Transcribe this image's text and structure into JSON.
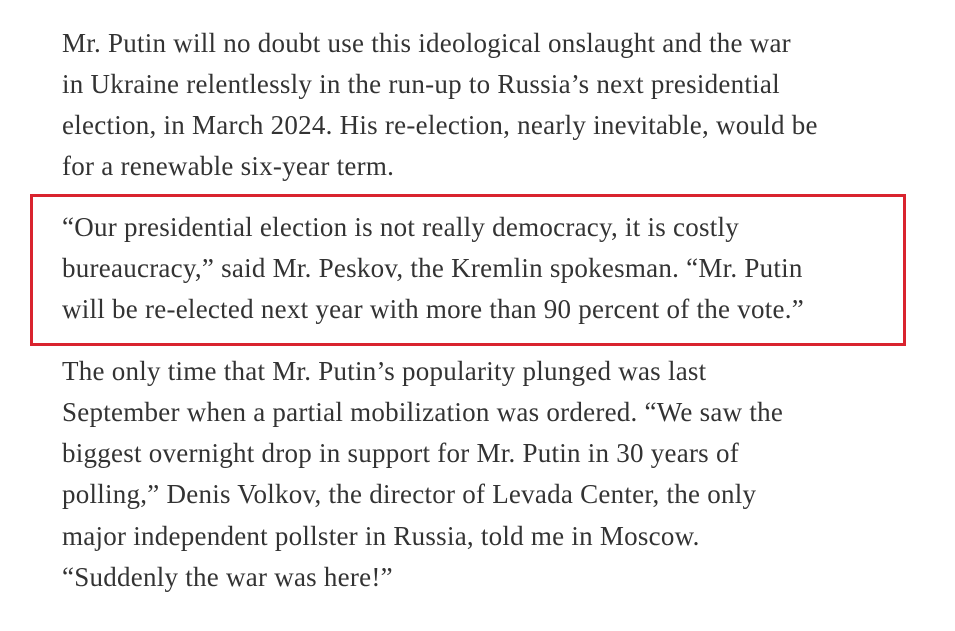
{
  "paragraphs": [
    {
      "lines": [
        "Mr. Putin will no doubt use this ideological onslaught and the war",
        "in Ukraine relentlessly in the run-up to Russia’s next presidential",
        "election, in March 2024. His re-election, nearly inevitable, would be",
        "for a renewable six-year term."
      ]
    },
    {
      "lines": [
        "“Our presidential election is not really democracy, it is costly",
        "bureaucracy,” said Mr. Peskov, the Kremlin spokesman. “Mr. Putin",
        "will be re-elected next year with more than 90 percent of the vote.”"
      ]
    },
    {
      "lines": [
        "The only time that Mr. Putin’s popularity plunged was last",
        "September when a partial mobilization was ordered. “We saw the",
        "biggest overnight drop in support for Mr. Putin in 30 years of",
        "polling,” Denis Volkov, the director of Levada Center, the only",
        "major independent pollster in Russia, told me in Moscow.",
        "“Suddenly the war was here!”"
      ]
    }
  ]
}
